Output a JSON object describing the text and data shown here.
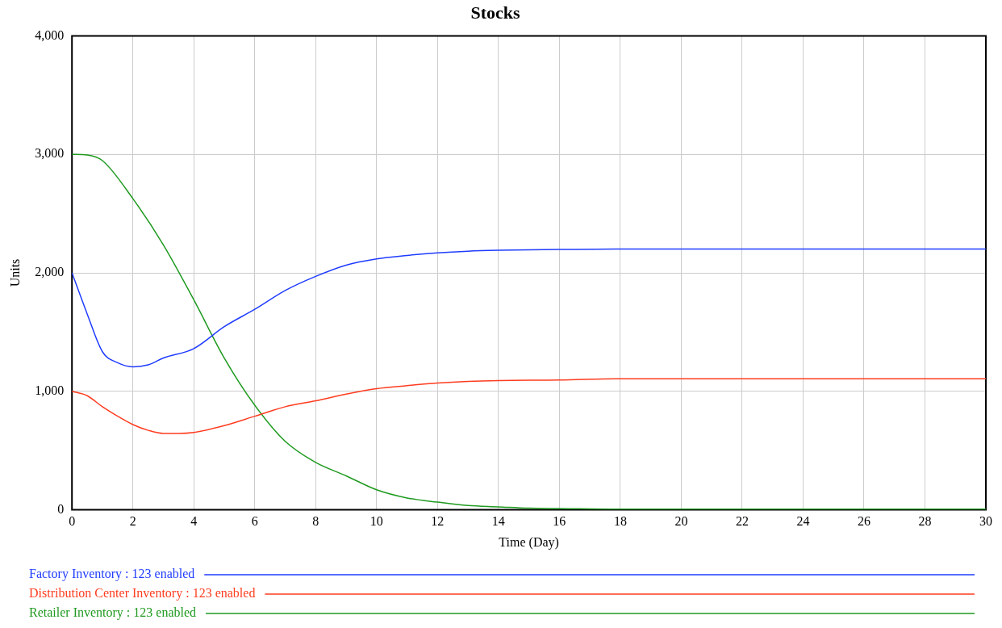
{
  "chart_data": {
    "type": "line",
    "title": "Stocks",
    "xlabel": "Time (Day)",
    "ylabel": "Units",
    "xlim": [
      0,
      30
    ],
    "xticks": [
      0,
      2,
      4,
      6,
      8,
      10,
      12,
      14,
      16,
      18,
      20,
      22,
      24,
      26,
      28,
      30
    ],
    "ylim": [
      0,
      4000
    ],
    "yticks": [
      {
        "value": 0,
        "label": "0"
      },
      {
        "value": 1000,
        "label": "1,000"
      },
      {
        "value": 2000,
        "label": "2,000"
      },
      {
        "value": 3000,
        "label": "3,000"
      },
      {
        "value": 4000,
        "label": "4,000"
      }
    ],
    "grid": true,
    "legend": "bottom",
    "marker": "none",
    "line_style": "solid",
    "series": [
      {
        "name": "Factory Inventory : 123 enabled",
        "color": "#1f3cff",
        "x": [
          0,
          0.5,
          1,
          1.5,
          2,
          2.5,
          3,
          4,
          5,
          6,
          7,
          8,
          9,
          10,
          11,
          12,
          13,
          14,
          16,
          18,
          20,
          22,
          24,
          26,
          28,
          30
        ],
        "values": [
          2000,
          1653,
          1334,
          1241,
          1207,
          1223,
          1281,
          1361,
          1546,
          1692,
          1851,
          1970,
          2065,
          2118,
          2147,
          2169,
          2183,
          2190,
          2197,
          2201,
          2201,
          2201,
          2201,
          2201,
          2201,
          2201
        ]
      },
      {
        "name": "Distribution Center Inventory : 123 enabled",
        "color": "#ff3c1f",
        "x": [
          0,
          0.5,
          1,
          1.5,
          2,
          2.5,
          3,
          3.5,
          4,
          5,
          6,
          7,
          8,
          9,
          10,
          11,
          12,
          13,
          14,
          16,
          18,
          20,
          22,
          24,
          26,
          28,
          30
        ],
        "values": [
          1000,
          963,
          870,
          790,
          719,
          671,
          645,
          645,
          653,
          711,
          790,
          870,
          920,
          977,
          1023,
          1048,
          1070,
          1084,
          1091,
          1095,
          1106,
          1106,
          1106,
          1106,
          1106,
          1106,
          1106
        ]
      },
      {
        "name": "Retailer Inventory : 123 enabled",
        "color": "#1f9a1f",
        "x": [
          0,
          0.5,
          1,
          2,
          3,
          4,
          5,
          6,
          7,
          8,
          9,
          10,
          11,
          12,
          13,
          14,
          15,
          16,
          18,
          20,
          22,
          24,
          26,
          28,
          30
        ],
        "values": [
          3000,
          2995,
          2947,
          2626,
          2236,
          1772,
          1281,
          883,
          578,
          400,
          287,
          169,
          100,
          65,
          36,
          25,
          14,
          11,
          5,
          5,
          5,
          5,
          5,
          5,
          5
        ]
      }
    ]
  }
}
